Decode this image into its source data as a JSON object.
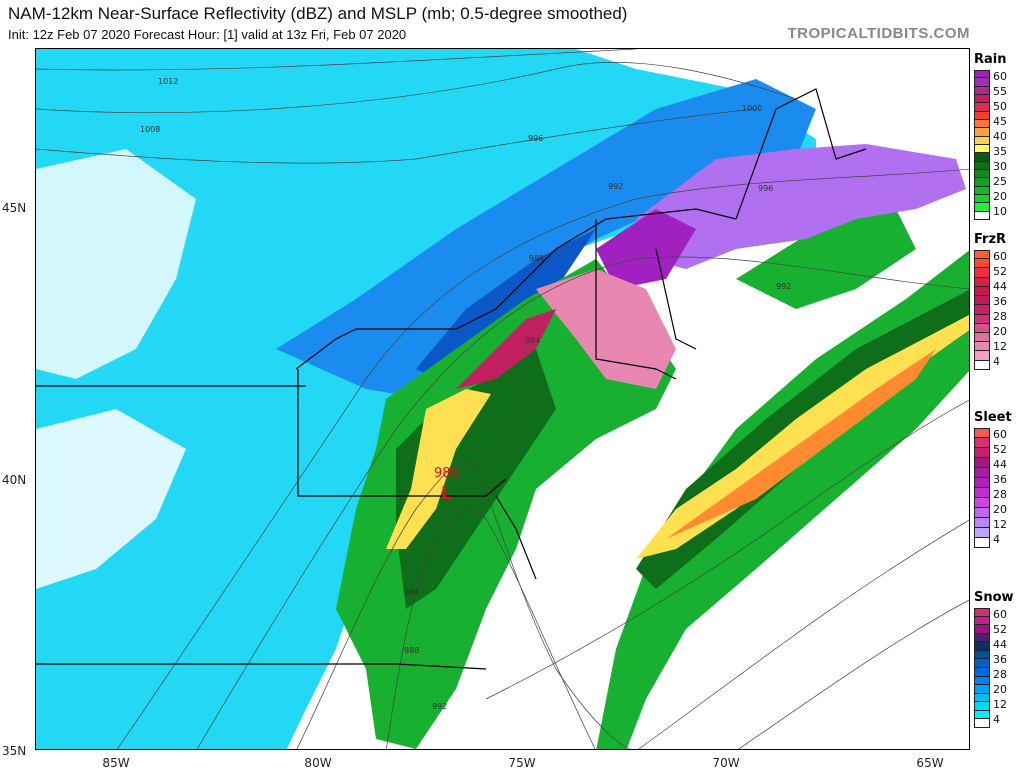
{
  "header": {
    "title": "NAM-12km Near-Surface Reflectivity (dBZ) and MSLP (mb; 0.5-degree smoothed)",
    "subtitle": "Init: 12z Feb 07 2020   Forecast Hour: [1]   valid at 13z Fri, Feb 07 2020",
    "brand": "TROPICALTIDBITS.COM"
  },
  "axes": {
    "latitudes": [
      "45N",
      "40N",
      "35N"
    ],
    "longitudes": [
      "85W",
      "80W",
      "75W",
      "70W",
      "65W"
    ]
  },
  "isobars": [
    "1012",
    "1008",
    "996",
    "1000",
    "992",
    "996",
    "992",
    "988",
    "984",
    "984",
    "988",
    "992"
  ],
  "low": {
    "symbol": "L",
    "pressure": "980",
    "color": "#e0101a"
  },
  "legends": [
    {
      "title": "Rain",
      "labels": [
        "60",
        "55",
        "50",
        "45",
        "40",
        "35",
        "30",
        "25",
        "20",
        "10"
      ],
      "colors": [
        "#a020c0",
        "#a030b0",
        "#b02a90",
        "#c0205a",
        "#d83050",
        "#f04030",
        "#ff7a30",
        "#ffa040",
        "#ffd050",
        "#ffff50",
        "#0a5a14",
        "#0e6e1a",
        "#108a20",
        "#10a028",
        "#10b830",
        "#18d038",
        "#20f040",
        "#ffffff"
      ]
    },
    {
      "title": "FrzR",
      "labels": [
        "60",
        "52",
        "44",
        "36",
        "28",
        "20",
        "12",
        "4"
      ],
      "colors": [
        "#ff5a30",
        "#ff4a30",
        "#f03040",
        "#d82040",
        "#c81848",
        "#c01858",
        "#c82068",
        "#d03078",
        "#d8508a",
        "#e070a0",
        "#e888b0",
        "#f0a0c0",
        "#ffffff"
      ]
    },
    {
      "title": "Sleet",
      "labels": [
        "60",
        "52",
        "44",
        "36",
        "28",
        "20",
        "12",
        "4"
      ],
      "colors": [
        "#f05a50",
        "#d83070",
        "#c82070",
        "#a01880",
        "#a020a0",
        "#b020b8",
        "#c030d0",
        "#c848e0",
        "#c068f0",
        "#b888f8",
        "#b8a8ff",
        "#ffffff"
      ]
    },
    {
      "title": "Snow",
      "labels": [
        "60",
        "52",
        "44",
        "36",
        "28",
        "20",
        "12",
        "4"
      ],
      "colors": [
        "#d03070",
        "#c02090",
        "#a01080",
        "#502070",
        "#103060",
        "#0050a0",
        "#0060c8",
        "#0068e0",
        "#0080ff",
        "#00a0ff",
        "#00c0f0",
        "#00d8f8",
        "#00f0ff",
        "#ffffff"
      ]
    }
  ]
}
